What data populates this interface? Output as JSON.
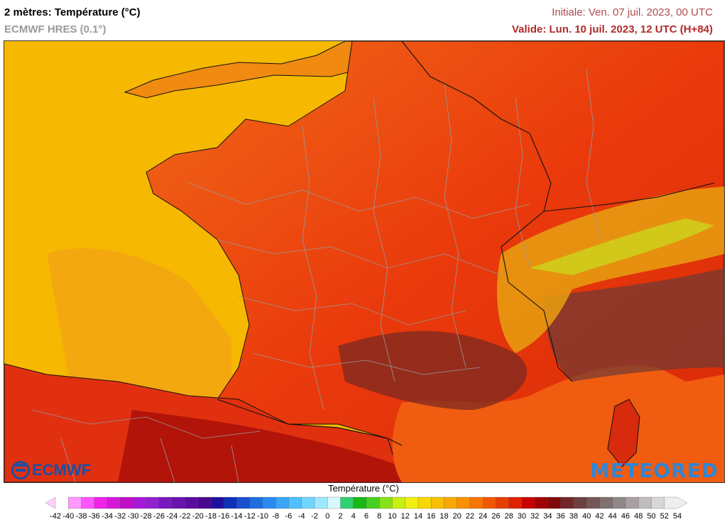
{
  "header": {
    "title": "2 mètres: Température (°C)",
    "model": "ECMWF HRES (0.1°)",
    "initial": "Initiale: Ven. 07 juil. 2023, 00 UTC",
    "valid": "Valide: Lun. 10 juil. 2023, 12 UTC (H+84)"
  },
  "logos": {
    "left": "ECMWF",
    "right": "METEORED"
  },
  "legend": {
    "title": "Température (°C)",
    "min": -42,
    "max": 54,
    "step": 2,
    "colors": [
      "#ffd0ff",
      "#ff99ff",
      "#ff55ff",
      "#f022e8",
      "#d818d8",
      "#c010c8",
      "#a61ad8",
      "#9020d0",
      "#7a18c0",
      "#6812b0",
      "#5a0ca0",
      "#4a0890",
      "#2010a0",
      "#1030b8",
      "#1a50d0",
      "#1e6ee0",
      "#2a8af0",
      "#3aa6f8",
      "#4ec0ff",
      "#70d6ff",
      "#a0e8ff",
      "#d8f8ff",
      "#30d070",
      "#18b818",
      "#48d020",
      "#88e018",
      "#c8f010",
      "#f0f010",
      "#f8d800",
      "#f8c000",
      "#f8a800",
      "#f89000",
      "#f87400",
      "#f05800",
      "#e83c00",
      "#e02000",
      "#c80000",
      "#a00000",
      "#800808",
      "#702828",
      "#6e4040",
      "#745858",
      "#807070",
      "#908888",
      "#a8a0a0",
      "#c0bcbc",
      "#d8d6d6",
      "#eeeeee"
    ],
    "ticks": [
      "-42",
      "-40",
      "-38",
      "-36",
      "-34",
      "-32",
      "-30",
      "-28",
      "-26",
      "-24",
      "-22",
      "-20",
      "-18",
      "-16",
      "-14",
      "-12",
      "-10",
      "-8",
      "-6",
      "-4",
      "-2",
      "0",
      "2",
      "4",
      "6",
      "8",
      "10",
      "12",
      "14",
      "16",
      "18",
      "20",
      "22",
      "24",
      "26",
      "28",
      "30",
      "32",
      "34",
      "36",
      "38",
      "40",
      "42",
      "44",
      "46",
      "48",
      "50",
      "52",
      "54"
    ]
  }
}
